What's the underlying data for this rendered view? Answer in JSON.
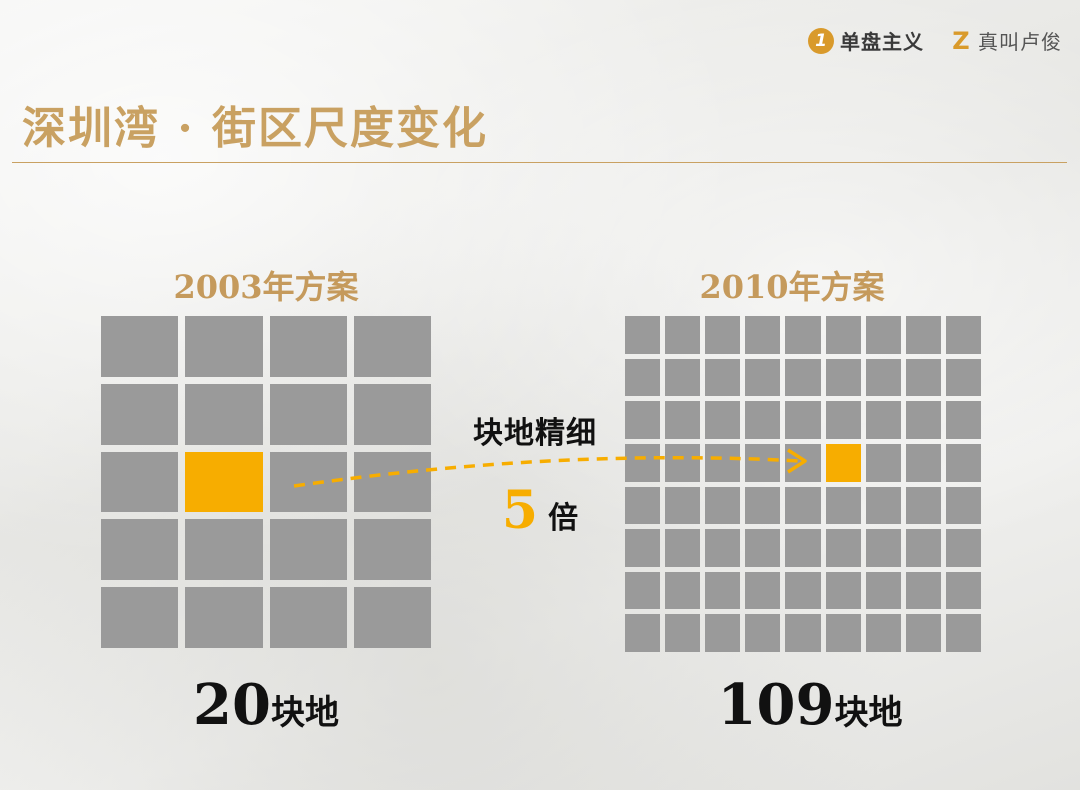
{
  "brand": {
    "logo_1": {
      "mark": "1",
      "text": "单盘主义"
    },
    "logo_2": {
      "mark": "Z",
      "text": "真叫卢俊"
    }
  },
  "title": "深圳湾 · 街区尺度变化",
  "plans": {
    "left": {
      "heading": "2003年方案",
      "count": "20",
      "unit": "块地",
      "cols": 4,
      "rows": 5,
      "highlight": [
        2,
        1
      ]
    },
    "right": {
      "heading": "2010年方案",
      "count": "109",
      "unit": "块地",
      "cols": 9,
      "rows": 8,
      "highlight": [
        3,
        5
      ]
    }
  },
  "comparison": {
    "label": "块地精细",
    "multiplier": "5",
    "multiplier_unit": "倍"
  },
  "colors": {
    "accent": "#f7ad00",
    "block": "#9a9a9a",
    "title": "#c9a162",
    "heading": "#c59a5c"
  }
}
